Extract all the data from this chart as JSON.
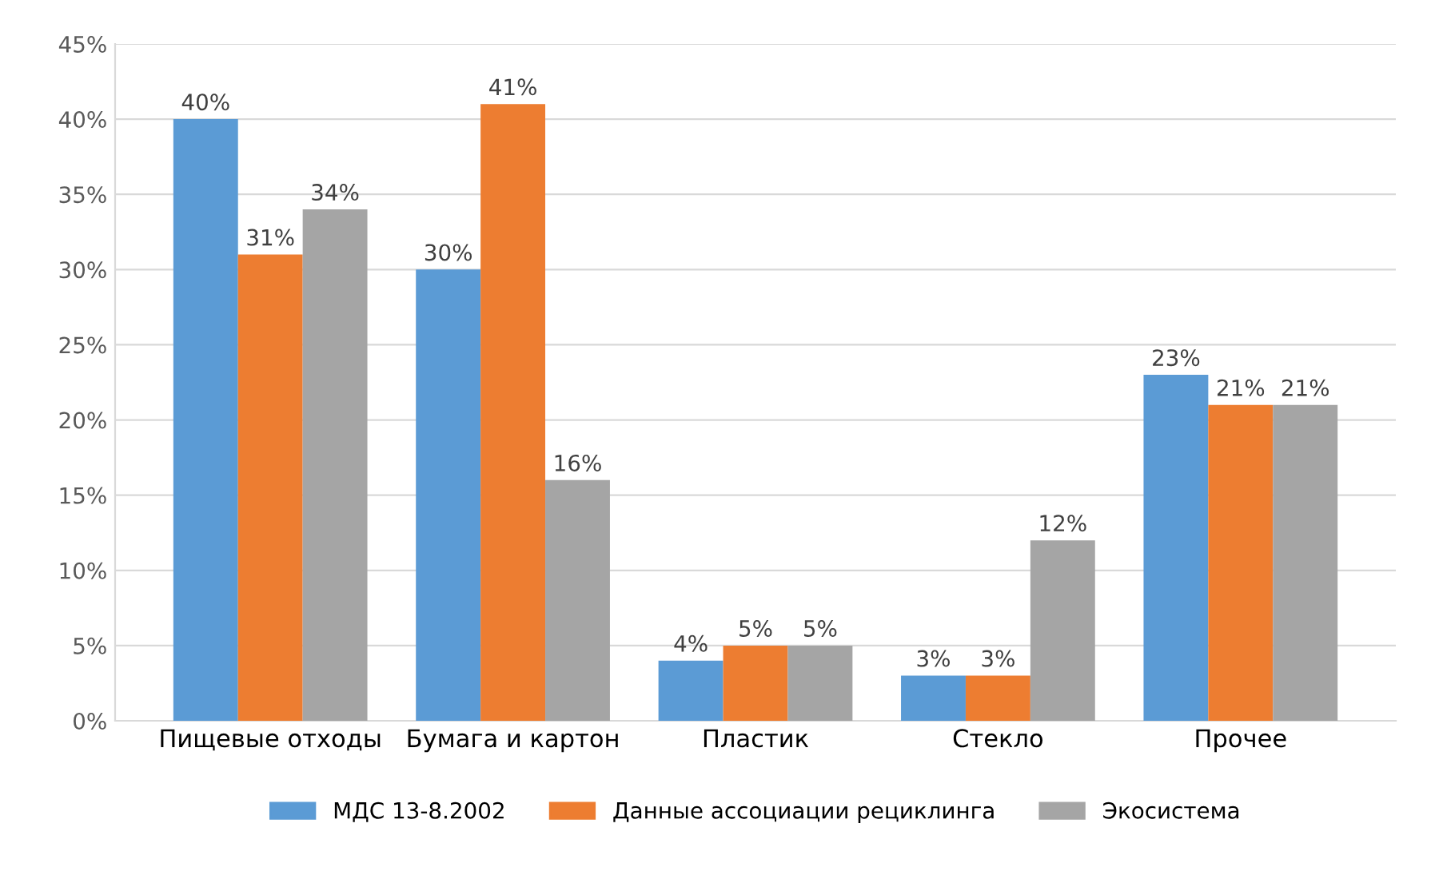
{
  "chart_data": {
    "type": "bar",
    "categories": [
      "Пищевые отходы",
      "Бумага и картон",
      "Пластик",
      "Стекло",
      "Прочее"
    ],
    "series": [
      {
        "name": "МДС 13-8.2002",
        "color": "#5b9bd5",
        "values": [
          40,
          30,
          4,
          3,
          23
        ],
        "value_labels": [
          "40%",
          "30%",
          "4%",
          "3%",
          "23%"
        ]
      },
      {
        "name": "Данные ассоциации рециклинга",
        "color": "#ed7d31",
        "values": [
          31,
          41,
          5,
          3,
          21
        ],
        "value_labels": [
          "31%",
          "41%",
          "5%",
          "3%",
          "21%"
        ]
      },
      {
        "name": "Экосистема",
        "color": "#a5a5a5",
        "values": [
          34,
          16,
          5,
          12,
          21
        ],
        "value_labels": [
          "34%",
          "16%",
          "5%",
          "12%",
          "21%"
        ]
      }
    ],
    "ylim": [
      0,
      45
    ],
    "yticks": [
      {
        "value": 0,
        "label": "0%"
      },
      {
        "value": 5,
        "label": "5%"
      },
      {
        "value": 10,
        "label": "10%"
      },
      {
        "value": 15,
        "label": "15%"
      },
      {
        "value": 20,
        "label": "20%"
      },
      {
        "value": 25,
        "label": "25%"
      },
      {
        "value": 30,
        "label": "30%"
      },
      {
        "value": 35,
        "label": "35%"
      },
      {
        "value": 40,
        "label": "40%"
      },
      {
        "value": 45,
        "label": "45%"
      }
    ],
    "grid": "y",
    "legend": "bottom"
  }
}
